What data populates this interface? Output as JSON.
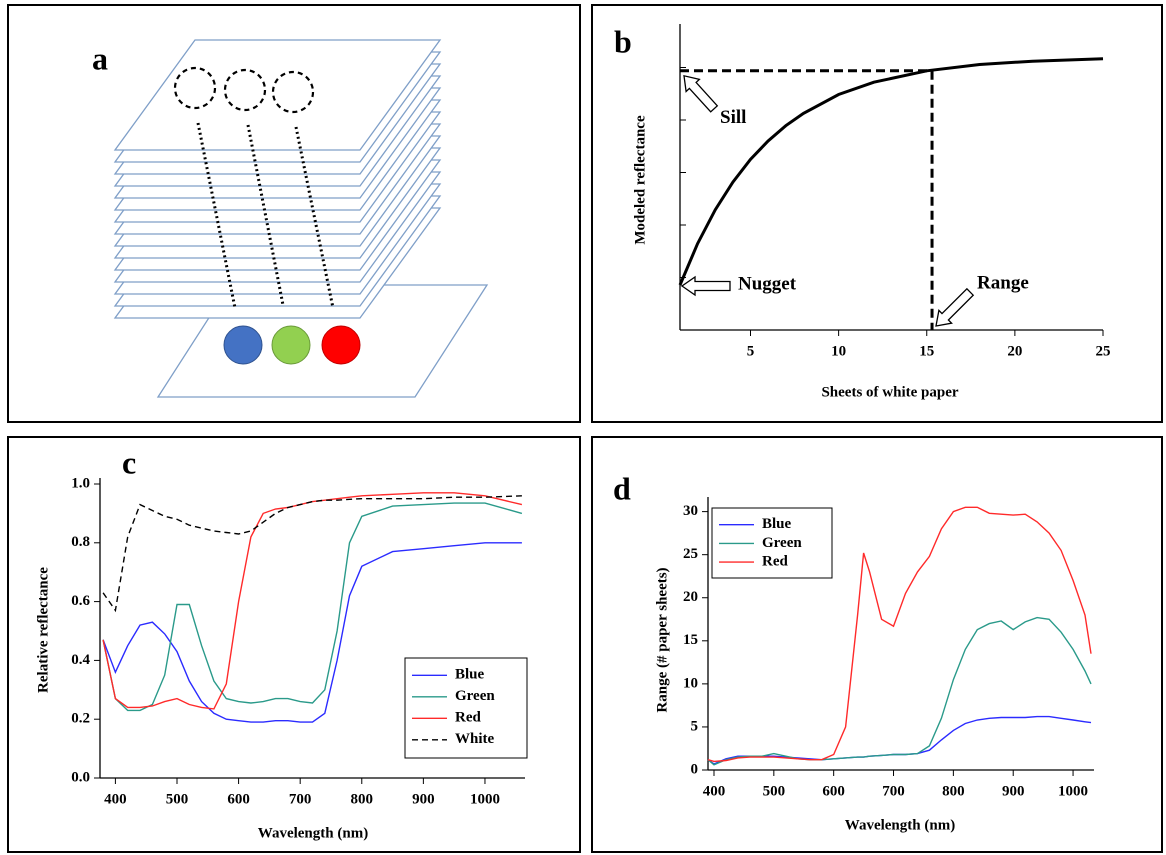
{
  "chart_data": [
    {
      "type": "diagram",
      "label": "a"
    },
    {
      "type": "line",
      "label": "b",
      "xlabel": "Sheets of white paper",
      "ylabel": "Modeled reflectance",
      "x": [
        1,
        2,
        3,
        4,
        5,
        6,
        7,
        8,
        10,
        12,
        15,
        18,
        21,
        25
      ],
      "values": [
        0.15,
        0.288,
        0.401,
        0.493,
        0.569,
        0.63,
        0.681,
        0.722,
        0.785,
        0.826,
        0.864,
        0.885,
        0.896,
        0.904
      ],
      "color": "#000000",
      "xlim": [
        1,
        25
      ],
      "xticks": [
        5,
        10,
        15,
        20,
        25
      ],
      "ylim": [
        0,
        1
      ],
      "yticks": [
        0.175,
        0.35,
        0.525,
        0.7,
        0.875
      ],
      "ytick_labels": false,
      "annotations": {
        "sill": {
          "text": "Sill",
          "value": 0.864
        },
        "nugget": {
          "text": "Nugget",
          "value": 0.15
        },
        "range": {
          "text": "Range",
          "value": 15.3
        }
      }
    },
    {
      "type": "line",
      "label": "c",
      "xlabel": "Wavelength (nm)",
      "ylabel": "Relative reflectance",
      "x": [
        380,
        400,
        420,
        440,
        460,
        480,
        500,
        520,
        540,
        560,
        580,
        600,
        620,
        640,
        660,
        680,
        700,
        720,
        740,
        760,
        780,
        800,
        850,
        900,
        950,
        1000,
        1060
      ],
      "series": [
        {
          "name": "Blue",
          "color": "#2b2bff",
          "values": [
            0.47,
            0.36,
            0.45,
            0.52,
            0.53,
            0.49,
            0.43,
            0.33,
            0.26,
            0.22,
            0.2,
            0.195,
            0.19,
            0.19,
            0.195,
            0.195,
            0.19,
            0.19,
            0.22,
            0.4,
            0.62,
            0.72,
            0.77,
            0.78,
            0.79,
            0.8,
            0.8
          ]
        },
        {
          "name": "Green",
          "color": "#2a9a8a",
          "values": [
            0.47,
            0.27,
            0.23,
            0.23,
            0.25,
            0.35,
            0.59,
            0.59,
            0.45,
            0.33,
            0.27,
            0.26,
            0.255,
            0.26,
            0.27,
            0.27,
            0.26,
            0.255,
            0.3,
            0.5,
            0.8,
            0.89,
            0.925,
            0.93,
            0.935,
            0.935,
            0.9
          ]
        },
        {
          "name": "Red",
          "color": "#ff2a2a",
          "values": [
            0.47,
            0.27,
            0.24,
            0.24,
            0.245,
            0.26,
            0.27,
            0.25,
            0.24,
            0.235,
            0.32,
            0.6,
            0.82,
            0.9,
            0.915,
            0.92,
            0.93,
            0.94,
            0.945,
            0.95,
            0.955,
            0.96,
            0.965,
            0.97,
            0.97,
            0.96,
            0.93
          ]
        },
        {
          "name": "White",
          "color": "#000000",
          "dash": true,
          "values": [
            0.63,
            0.57,
            0.82,
            0.93,
            0.91,
            0.89,
            0.88,
            0.86,
            0.85,
            0.84,
            0.835,
            0.83,
            0.84,
            0.87,
            0.9,
            0.92,
            0.93,
            0.94,
            0.945,
            0.945,
            0.948,
            0.95,
            0.95,
            0.95,
            0.955,
            0.955,
            0.96
          ]
        }
      ],
      "xlim": [
        375,
        1065
      ],
      "xticks": [
        400,
        500,
        600,
        700,
        800,
        900,
        1000
      ],
      "ylim": [
        0,
        1
      ],
      "yticks": [
        {
          "value": 0,
          "label": "0.0"
        },
        0.2,
        0.4,
        0.6,
        0.8,
        {
          "value": 1,
          "label": "1.0"
        }
      ],
      "legend": "lower right"
    },
    {
      "type": "line",
      "label": "d",
      "xlabel": "Wavelength (nm)",
      "ylabel": "Range (# paper sheets)",
      "x": [
        390,
        400,
        420,
        440,
        460,
        480,
        500,
        520,
        540,
        560,
        580,
        600,
        620,
        640,
        650,
        660,
        680,
        700,
        720,
        740,
        760,
        780,
        800,
        820,
        840,
        860,
        880,
        900,
        920,
        940,
        960,
        980,
        1000,
        1020,
        1030
      ],
      "series": [
        {
          "name": "Blue",
          "color": "#2b2bff",
          "values": [
            1.2,
            0.7,
            1.3,
            1.6,
            1.6,
            1.6,
            1.6,
            1.5,
            1.4,
            1.3,
            1.2,
            1.3,
            1.4,
            1.5,
            1.5,
            1.6,
            1.7,
            1.8,
            1.8,
            1.9,
            2.3,
            3.5,
            4.6,
            5.4,
            5.8,
            6.0,
            6.1,
            6.1,
            6.1,
            6.2,
            6.2,
            6.0,
            5.8,
            5.6,
            5.5
          ]
        },
        {
          "name": "Green",
          "color": "#2a9a8a",
          "values": [
            1.2,
            0.6,
            1.2,
            1.5,
            1.6,
            1.6,
            1.9,
            1.6,
            1.3,
            1.2,
            1.2,
            1.3,
            1.4,
            1.5,
            1.5,
            1.6,
            1.7,
            1.8,
            1.8,
            1.9,
            2.8,
            6,
            10.5,
            14,
            16.3,
            17,
            17.3,
            16.3,
            17.2,
            17.7,
            17.5,
            16,
            14,
            11.5,
            10
          ]
        },
        {
          "name": "Red",
          "color": "#ff2a2a",
          "values": [
            1.2,
            1.0,
            1.1,
            1.4,
            1.5,
            1.5,
            1.5,
            1.4,
            1.3,
            1.2,
            1.2,
            1.8,
            5,
            18,
            25.2,
            23,
            17.5,
            16.7,
            20.5,
            23,
            24.8,
            28,
            30,
            30.5,
            30.5,
            29.8,
            29.7,
            29.6,
            29.7,
            28.8,
            27.5,
            25.5,
            22,
            18,
            13.5
          ]
        }
      ],
      "xlim": [
        390,
        1035
      ],
      "xticks": [
        400,
        500,
        600,
        700,
        800,
        900,
        1000
      ],
      "ylim": [
        0,
        31
      ],
      "yticks": [
        0,
        5,
        10,
        15,
        20,
        25,
        30
      ],
      "legend": "upper left"
    }
  ]
}
